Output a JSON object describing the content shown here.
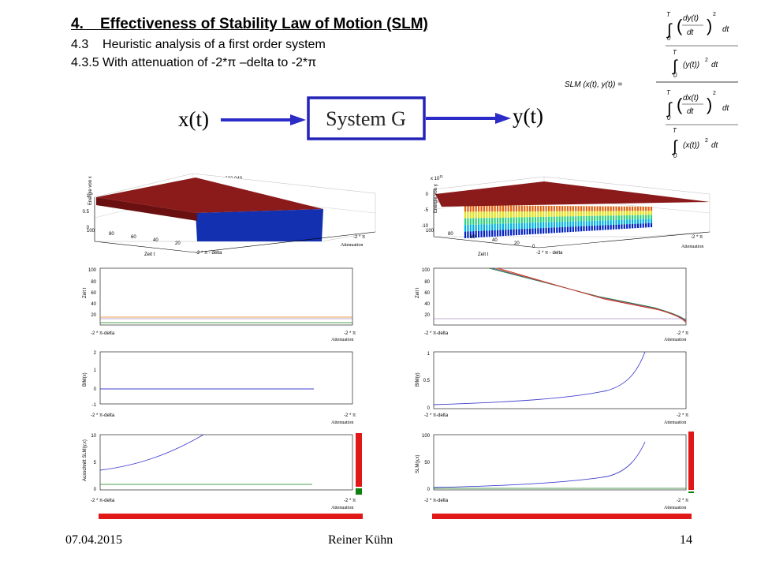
{
  "slide": {
    "title": "4.    Effectiveness of Stability Law of Motion (SLM)",
    "subtitle1": "4.3    Heuristic analysis of a first order system",
    "subtitle2": "4.3.5 With attenuation of -2*π –delta to -2*π"
  },
  "formula": {
    "lhs": "SLM (x(t), y(t)) =",
    "upper": "T",
    "lower": "0",
    "dt": "dt",
    "exp": "2",
    "num_top": "dy(t)",
    "num_bottom": "(y(t))",
    "den_top": "dx(t)",
    "den_bottom": "(x(t))"
  },
  "diagram": {
    "input": "x(t)",
    "block": "System G",
    "output": "y(t)"
  },
  "plots": {
    "left_3d": {
      "title": "Abbildung 002 040",
      "zlabel": "Energie von x",
      "xlabel": "Zeit t",
      "ylabel_a": "-2 * π - delta",
      "ylabel_b": "-2 * π",
      "ylabel_c": "Attenuation",
      "zticks": [
        "1",
        "0.5",
        "0"
      ],
      "xticks": [
        "100",
        "80",
        "60",
        "40",
        "20"
      ]
    },
    "right_3d": {
      "exponent": "x 10",
      "exponent_power": "11",
      "zlabel": "Energie von y",
      "xlabel": "Zeit t",
      "ylabel_a": "-2 * π - delta",
      "ylabel_b": "-2 * π",
      "ylabel_c": "Attenuation",
      "zticks": [
        "0",
        "-5",
        "-10"
      ],
      "xticks": [
        "100",
        "80",
        "60",
        "40",
        "20",
        "0"
      ]
    },
    "xaxis_left": "-2 * π-delta",
    "xaxis_right": "-2 * π",
    "xaxis_sub": "Attenuation",
    "left_time": {
      "ylabel": "Zeit t",
      "yticks": [
        "100",
        "80",
        "60",
        "40",
        "20"
      ]
    },
    "left_bim": {
      "ylabel": "BIM(x)",
      "yticks": [
        "2",
        "1",
        "0",
        "-1"
      ]
    },
    "left_slm": {
      "ylabel": "Ausschnitt SLM(y,x)",
      "yticks": [
        "10",
        "5",
        "0"
      ]
    },
    "right_time": {
      "ylabel": "Zeit t",
      "yticks": [
        "100",
        "80",
        "60",
        "40",
        "20"
      ]
    },
    "right_bim": {
      "ylabel": "BIM(y)",
      "yticks": [
        "1",
        "0.5",
        "0"
      ]
    },
    "right_slm": {
      "ylabel": "SLM(y,x)",
      "yticks": [
        "100",
        "50",
        "0"
      ]
    }
  },
  "footer": {
    "date": "07.04.2015",
    "author": "Reiner Kühn",
    "page": "14"
  },
  "colors": {
    "arrow_blue": "#2b2bc8",
    "block_border": "#2323b8",
    "bar_red": "#e01818",
    "bar_green": "#108010",
    "surface_red": "#8b1a1a",
    "surface_blue": "#1230b0"
  }
}
